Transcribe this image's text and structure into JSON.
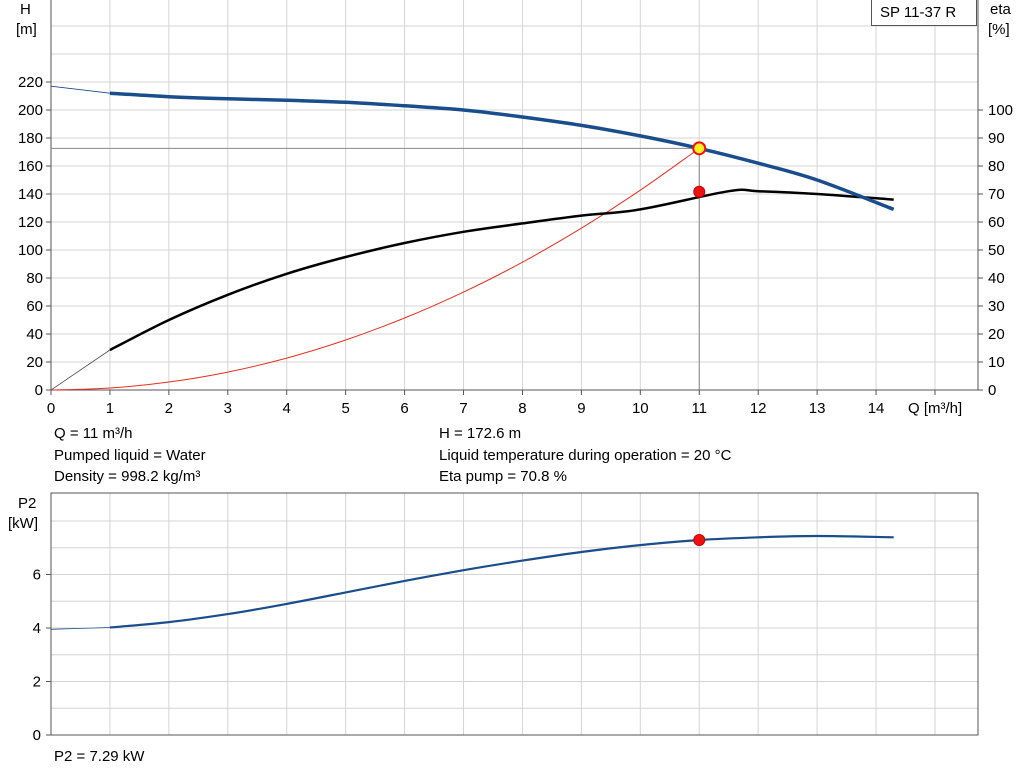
{
  "chart_data": [
    {
      "type": "line",
      "model_label": "SP 11-37 R",
      "xlabel": "Q [m³/h]",
      "ylabel_left": [
        "H",
        "[m]"
      ],
      "ylabel_right": [
        "eta",
        "[%]"
      ],
      "xlim": [
        0,
        15
      ],
      "ylim_left": [
        0,
        240
      ],
      "ylim_right": [
        0,
        120
      ],
      "x_ticks": [
        0,
        1,
        2,
        3,
        4,
        5,
        6,
        7,
        8,
        9,
        10,
        11,
        12,
        13,
        14
      ],
      "y_ticks_left": [
        0,
        20,
        40,
        60,
        80,
        100,
        120,
        140,
        160,
        180,
        200,
        220
      ],
      "y_ticks_right": [
        0,
        10,
        20,
        30,
        40,
        50,
        60,
        70,
        80,
        90,
        100
      ],
      "grid": true,
      "series": [
        {
          "axis": "left",
          "color": "#1a4d8c",
          "points": [
            [
              1,
              212
            ],
            [
              2,
              209.5
            ],
            [
              3,
              208
            ],
            [
              4,
              207
            ],
            [
              5,
              205.5
            ],
            [
              6,
              203
            ],
            [
              7,
              200
            ],
            [
              8,
              195
            ],
            [
              9,
              189
            ],
            [
              10,
              181.5
            ],
            [
              11,
              172.6
            ],
            [
              12,
              162
            ],
            [
              13,
              150
            ],
            [
              14.3,
              129
            ]
          ],
          "extrapolated": [
            [
              0,
              217
            ],
            [
              1,
              212
            ]
          ]
        },
        {
          "axis": "right",
          "color": "#000000",
          "points": [
            [
              1,
              14.3
            ],
            [
              2,
              25
            ],
            [
              3,
              34
            ],
            [
              4,
              41.5
            ],
            [
              5,
              47.5
            ],
            [
              6,
              52.5
            ],
            [
              7,
              56.5
            ],
            [
              8,
              59.5
            ],
            [
              9,
              62.3
            ],
            [
              10,
              64.5
            ],
            [
              11,
              70.8
            ],
            [
              11.5,
              71
            ],
            [
              12,
              71
            ],
            [
              13,
              70
            ],
            [
              14.3,
              68
            ]
          ],
          "extrapolated": [
            [
              0,
              0
            ],
            [
              1,
              14.3
            ]
          ]
        },
        {
          "axis": "left",
          "color": "#e83020",
          "points": [
            [
              0,
              0
            ],
            [
              1,
              1.4
            ],
            [
              2,
              5.7
            ],
            [
              3,
              12.8
            ],
            [
              4,
              22.8
            ],
            [
              5,
              35.7
            ],
            [
              6,
              51.4
            ],
            [
              7,
              69.9
            ],
            [
              8,
              91.3
            ],
            [
              9,
              115.6
            ],
            [
              10,
              142.7
            ],
            [
              11,
              172.6
            ]
          ]
        }
      ],
      "operating_point": {
        "Q": 11,
        "H": 172.6,
        "eta": 70.8
      }
    },
    {
      "type": "line",
      "ylabel": [
        "P2",
        "[kW]"
      ],
      "xlim": [
        0,
        15
      ],
      "ylim": [
        0,
        8
      ],
      "y_ticks": [
        0,
        2,
        4,
        6
      ],
      "grid": true,
      "series": [
        {
          "color": "#1a4d8c",
          "points": [
            [
              1,
              4.02
            ],
            [
              2,
              4.22
            ],
            [
              3,
              4.52
            ],
            [
              4,
              4.9
            ],
            [
              5,
              5.33
            ],
            [
              6,
              5.76
            ],
            [
              7,
              6.16
            ],
            [
              8,
              6.52
            ],
            [
              9,
              6.84
            ],
            [
              10,
              7.1
            ],
            [
              11,
              7.29
            ],
            [
              12,
              7.39
            ],
            [
              13,
              7.44
            ],
            [
              14.3,
              7.39
            ]
          ],
          "extrapolated": [
            [
              0,
              3.95
            ],
            [
              1,
              4.02
            ]
          ]
        }
      ],
      "operating_point": {
        "Q": 11,
        "P2": 7.29
      }
    }
  ],
  "info": {
    "q": "Q = 11 m³/h",
    "h": "H = 172.6 m",
    "liquid": "Pumped liquid = Water",
    "temp": "Liquid temperature during operation = 20 °C",
    "density": "Density = 998.2 kg/m³",
    "eta": "Eta pump = 70.8 %",
    "p2": "P2 = 7.29 kW"
  }
}
